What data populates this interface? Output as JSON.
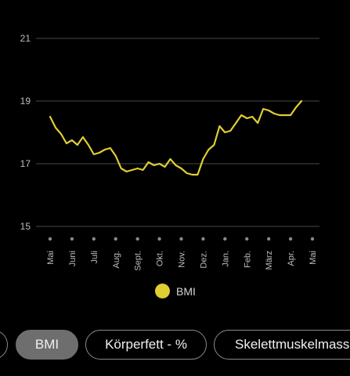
{
  "colors": {
    "line": "#e0ce33",
    "grid": "#3a3a3a",
    "dot": "#8a8a8a"
  },
  "chart_data": {
    "type": "line",
    "y_ticks": [
      15,
      17,
      19,
      21
    ],
    "ylim": [
      15,
      21
    ],
    "x_tick_labels": [
      "Mai",
      "Juni",
      "Juli",
      "Aug.",
      "Sept.",
      "Okt.",
      "Nov.",
      "Dez.",
      "Jan.",
      "Feb.",
      "März",
      "Apr.",
      "Mai"
    ],
    "x_range": [
      0,
      12
    ],
    "legend": {
      "placement": "bottom-center"
    },
    "series": [
      {
        "name": "BMI",
        "x": [
          0,
          0.25,
          0.5,
          0.75,
          1.0,
          1.25,
          1.5,
          1.75,
          2.0,
          2.25,
          2.5,
          2.75,
          3.0,
          3.25,
          3.5,
          3.75,
          4.0,
          4.25,
          4.5,
          4.75,
          5.0,
          5.25,
          5.5,
          5.75,
          6.0,
          6.25,
          6.5,
          6.75,
          7.0,
          7.25,
          7.5,
          7.75,
          8.0,
          8.25,
          8.5,
          8.75,
          9.0,
          9.25,
          9.5,
          9.75,
          10.0,
          10.25,
          10.5,
          10.75,
          11.0,
          11.25,
          11.5
        ],
        "values": [
          18.5,
          18.15,
          17.95,
          17.65,
          17.75,
          17.6,
          17.85,
          17.6,
          17.3,
          17.35,
          17.45,
          17.5,
          17.25,
          16.85,
          16.75,
          16.8,
          16.85,
          16.8,
          17.05,
          16.95,
          17.0,
          16.9,
          17.15,
          16.95,
          16.85,
          16.7,
          16.65,
          16.65,
          17.15,
          17.45,
          17.6,
          18.2,
          18.0,
          18.05,
          18.3,
          18.55,
          18.45,
          18.5,
          18.3,
          18.75,
          18.7,
          18.6,
          18.55,
          18.55,
          18.55,
          18.8,
          19.0
        ]
      }
    ]
  },
  "legend_label": "BMI",
  "chips": [
    {
      "label": ""
    },
    {
      "label": "BMI"
    },
    {
      "label": "Körperfett - %"
    },
    {
      "label": "Skelettmuskelmasse"
    }
  ]
}
